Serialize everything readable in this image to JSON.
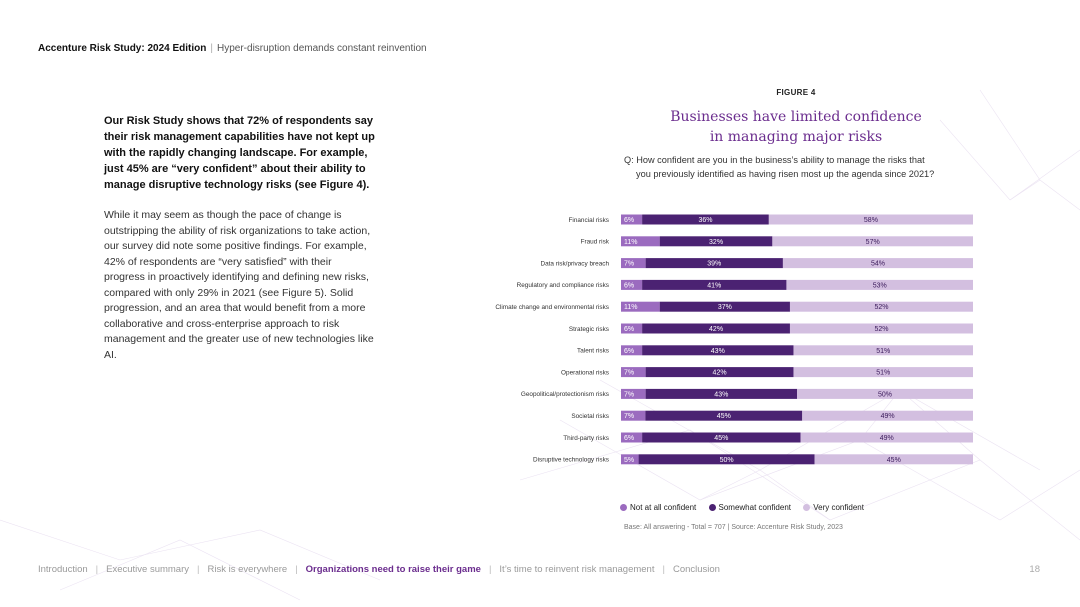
{
  "header": {
    "brand": "Accenture Risk Study: 2024 Edition",
    "separator": "|",
    "tagline": "Hyper-disruption demands constant reinvention"
  },
  "lead_paragraph": "Our Risk Study shows that 72% of respondents say their risk management capabilities have not kept up with the rapidly changing landscape. For example, just 45% are “very confident” about their ability to manage disruptive technology risks (see Figure 4).",
  "body_paragraph": "While it may seem as though the pace of change is outstripping the ability of risk organizations to take action, our survey did note some positive findings. For example, 42% of respondents are “very satisfied” with their progress in proactively identifying and defining new risks, compared with only 29% in 2021 (see Figure 5). Solid progression, and an area that would benefit from a more collaborative and cross-enterprise approach to risk management and the greater use of new technologies like AI.",
  "figure": {
    "label": "FIGURE 4",
    "title_line1": "Businesses have limited confidence",
    "title_line2": "in managing major risks",
    "question_line1": "Q: How confident are you in the business’s ability to manage the risks that",
    "question_line2": "you previously identified as having risen most up the agenda since 2021?",
    "note": "Base: All answering - Total = 707 | Source: Accenture Risk Study, 2023"
  },
  "chart_data": {
    "type": "bar",
    "orientation": "horizontal",
    "stacked": true,
    "categories": [
      "Financial risks",
      "Fraud risk",
      "Data risk/privacy breach",
      "Regulatory and compliance risks",
      "Climate change and environmental risks",
      "Strategic risks",
      "Talent risks",
      "Operational risks",
      "Geopolitical/protectionism risks",
      "Societal risks",
      "Third-party risks",
      "Disruptive technology risks"
    ],
    "series": [
      {
        "name": "Not at all confident",
        "color": "#9b6bbf",
        "values": [
          6,
          11,
          7,
          6,
          11,
          6,
          6,
          7,
          7,
          7,
          6,
          5
        ]
      },
      {
        "name": "Somewhat confident",
        "color": "#4b2272",
        "values": [
          36,
          32,
          39,
          41,
          37,
          42,
          43,
          42,
          43,
          45,
          45,
          50
        ]
      },
      {
        "name": "Very confident",
        "color": "#d3bfe0",
        "values": [
          58,
          57,
          54,
          53,
          52,
          52,
          51,
          51,
          50,
          49,
          49,
          45
        ]
      }
    ],
    "value_suffix": "%",
    "legend_position": "bottom-left",
    "grid": false
  },
  "footer": {
    "nav": [
      {
        "label": "Introduction",
        "active": false
      },
      {
        "label": "Executive summary",
        "active": false
      },
      {
        "label": "Risk is everywhere",
        "active": false
      },
      {
        "label": "Organizations need to raise their game",
        "active": true
      },
      {
        "label": "It’s time to reinvent risk management",
        "active": false
      },
      {
        "label": "Conclusion",
        "active": false
      }
    ],
    "separator": "|",
    "page_number": "18"
  },
  "colors": {
    "accent": "#6b2d8e"
  }
}
